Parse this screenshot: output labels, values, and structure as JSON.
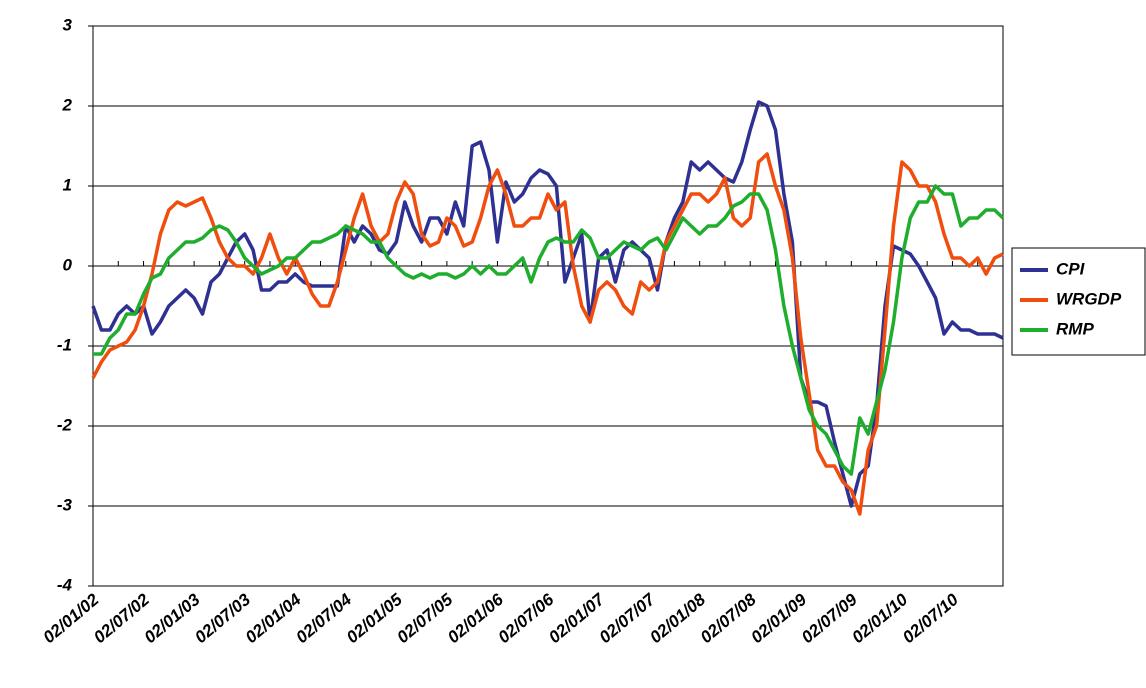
{
  "chart_data": {
    "type": "line",
    "categories": [
      "02/01/02",
      null,
      null,
      null,
      null,
      null,
      "02/07/02",
      null,
      null,
      null,
      null,
      null,
      "02/01/03",
      null,
      null,
      null,
      null,
      null,
      "02/07/03",
      null,
      null,
      null,
      null,
      null,
      "02/01/04",
      null,
      null,
      null,
      null,
      null,
      "02/07/04",
      null,
      null,
      null,
      null,
      null,
      "02/01/05",
      null,
      null,
      null,
      null,
      null,
      "02/07/05",
      null,
      null,
      null,
      null,
      null,
      "02/01/06",
      null,
      null,
      null,
      null,
      null,
      "02/07/06",
      null,
      null,
      null,
      null,
      null,
      "02/01/07",
      null,
      null,
      null,
      null,
      null,
      "02/07/07",
      null,
      null,
      null,
      null,
      null,
      "02/01/08",
      null,
      null,
      null,
      null,
      null,
      "02/07/08",
      null,
      null,
      null,
      null,
      null,
      "02/01/09",
      null,
      null,
      null,
      null,
      null,
      "02/07/09",
      null,
      null,
      null,
      null,
      null,
      "02/01/10",
      null,
      null,
      null,
      null,
      null,
      "02/07/10",
      null,
      null,
      null,
      null,
      null,
      null
    ],
    "series": [
      {
        "name": "CPI",
        "color": "#2e3192",
        "values": [
          -0.5,
          -0.8,
          -0.8,
          -0.6,
          -0.5,
          -0.6,
          -0.5,
          -0.85,
          -0.7,
          -0.5,
          -0.4,
          -0.3,
          -0.4,
          -0.6,
          -0.2,
          -0.1,
          0.1,
          0.3,
          0.4,
          0.2,
          -0.3,
          -0.3,
          -0.2,
          -0.2,
          -0.1,
          -0.2,
          -0.25,
          -0.25,
          -0.25,
          -0.25,
          0.5,
          0.3,
          0.5,
          0.4,
          0.2,
          0.15,
          0.3,
          0.8,
          0.5,
          0.3,
          0.6,
          0.6,
          0.4,
          0.8,
          0.5,
          1.5,
          1.55,
          1.2,
          0.3,
          1.05,
          0.8,
          0.9,
          1.1,
          1.2,
          1.15,
          1.0,
          -0.2,
          0.1,
          0.4,
          -0.7,
          0.1,
          0.2,
          -0.2,
          0.2,
          0.3,
          0.2,
          0.1,
          -0.3,
          0.3,
          0.6,
          0.8,
          1.3,
          1.2,
          1.3,
          1.2,
          1.1,
          1.05,
          1.3,
          1.7,
          2.05,
          2.0,
          1.7,
          0.9,
          0.3,
          -1.4,
          -1.7,
          -1.7,
          -1.75,
          -2.2,
          -2.6,
          -3.0,
          -2.6,
          -2.5,
          -1.75,
          -0.5,
          0.25,
          0.2,
          0.15,
          0.0,
          -0.2,
          -0.4,
          -0.85,
          -0.7,
          -0.8,
          -0.8,
          -0.85,
          -0.85,
          -0.85,
          -0.9
        ]
      },
      {
        "name": "WRGDP",
        "color": "#f04e0f",
        "values": [
          -1.4,
          -1.2,
          -1.05,
          -1.0,
          -0.95,
          -0.8,
          -0.5,
          -0.1,
          0.4,
          0.7,
          0.8,
          0.75,
          0.8,
          0.85,
          0.6,
          0.3,
          0.1,
          0.0,
          0.0,
          -0.1,
          0.1,
          0.4,
          0.1,
          -0.1,
          0.1,
          -0.1,
          -0.35,
          -0.5,
          -0.5,
          -0.2,
          0.2,
          0.6,
          0.9,
          0.5,
          0.3,
          0.4,
          0.8,
          1.05,
          0.9,
          0.4,
          0.25,
          0.3,
          0.6,
          0.5,
          0.25,
          0.3,
          0.6,
          1.0,
          1.2,
          0.9,
          0.5,
          0.5,
          0.6,
          0.6,
          0.9,
          0.7,
          0.8,
          0.0,
          -0.5,
          -0.7,
          -0.3,
          -0.2,
          -0.3,
          -0.5,
          -0.6,
          -0.2,
          -0.3,
          -0.2,
          0.3,
          0.5,
          0.7,
          0.9,
          0.9,
          0.8,
          0.9,
          1.1,
          0.6,
          0.5,
          0.6,
          1.3,
          1.4,
          1.0,
          0.7,
          0.1,
          -0.9,
          -1.6,
          -2.3,
          -2.5,
          -2.5,
          -2.7,
          -2.8,
          -3.1,
          -2.3,
          -2.0,
          -0.8,
          0.5,
          1.3,
          1.2,
          1.0,
          1.0,
          0.8,
          0.4,
          0.1,
          0.1,
          0.0,
          0.1,
          -0.1,
          0.1,
          0.15
        ]
      },
      {
        "name": "RMP",
        "color": "#1fad2e",
        "values": [
          -1.1,
          -1.1,
          -0.9,
          -0.8,
          -0.6,
          -0.6,
          -0.35,
          -0.15,
          -0.1,
          0.1,
          0.2,
          0.3,
          0.3,
          0.35,
          0.45,
          0.5,
          0.45,
          0.3,
          0.1,
          0.0,
          -0.1,
          -0.05,
          0.0,
          0.1,
          0.1,
          0.2,
          0.3,
          0.3,
          0.35,
          0.4,
          0.5,
          0.45,
          0.4,
          0.3,
          0.3,
          0.1,
          0.0,
          -0.1,
          -0.15,
          -0.1,
          -0.15,
          -0.1,
          -0.1,
          -0.15,
          -0.1,
          0.0,
          -0.1,
          0.0,
          -0.1,
          -0.1,
          0.0,
          0.1,
          -0.2,
          0.1,
          0.3,
          0.35,
          0.3,
          0.3,
          0.45,
          0.35,
          0.1,
          0.1,
          0.2,
          0.3,
          0.25,
          0.2,
          0.3,
          0.35,
          0.2,
          0.4,
          0.6,
          0.5,
          0.4,
          0.5,
          0.5,
          0.6,
          0.75,
          0.8,
          0.9,
          0.9,
          0.7,
          0.2,
          -0.5,
          -1.0,
          -1.4,
          -1.8,
          -2.0,
          -2.1,
          -2.3,
          -2.5,
          -2.6,
          -1.9,
          -2.1,
          -1.7,
          -1.3,
          -0.7,
          0.1,
          0.6,
          0.8,
          0.8,
          1.0,
          0.9,
          0.9,
          0.5,
          0.6,
          0.6,
          0.7,
          0.7,
          0.6
        ]
      }
    ],
    "ylim": [
      -4,
      3
    ],
    "yticks": [
      -4,
      -3,
      -2,
      -1,
      0,
      1,
      2,
      3
    ],
    "grid": true,
    "legend": "right"
  }
}
